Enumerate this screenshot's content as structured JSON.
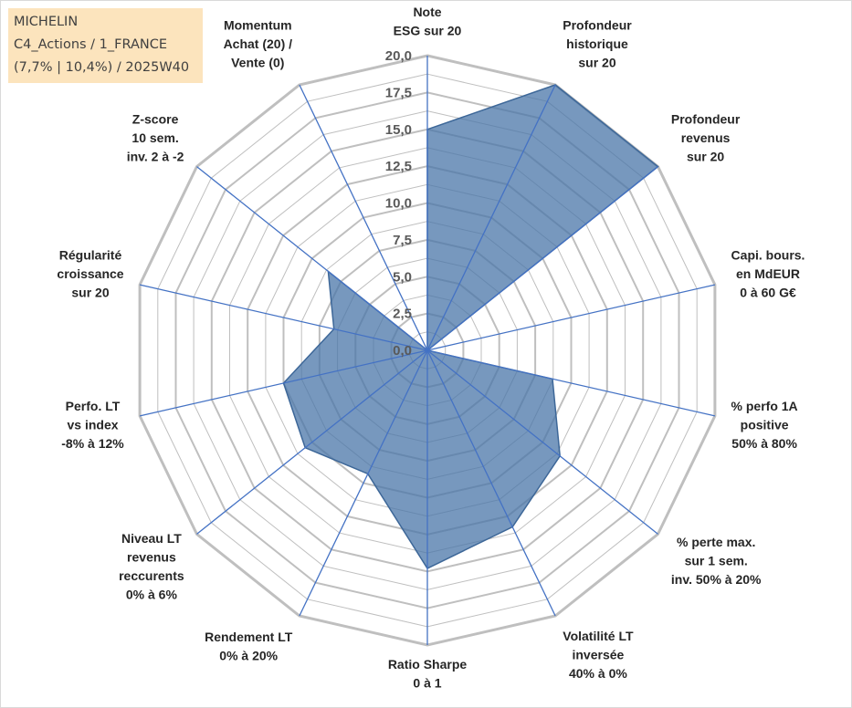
{
  "header": {
    "line1": "MICHELIN",
    "line2": "C4_Actions / 1_FRANCE",
    "line3": "(7,7% | 10,4%) / 2025W40"
  },
  "chart_data": {
    "type": "radar",
    "title": "MICHELIN C4_Actions / 1_FRANCE (7,7% | 10,4%) / 2025W40",
    "rlim": [
      0,
      20
    ],
    "ticks": [
      "0,0",
      "2,5",
      "5,0",
      "7,5",
      "10,0",
      "12,5",
      "15,0",
      "17,5",
      "20,0"
    ],
    "grid": true,
    "categories": [
      [
        "Note",
        "ESG sur 20"
      ],
      [
        "Profondeur",
        "historique",
        "sur 20"
      ],
      [
        "Profondeur",
        "revenus",
        "sur 20"
      ],
      [
        "Capi. bours.",
        "en MdEUR",
        "0 à 60 G€"
      ],
      [
        "% perfo 1A",
        "positive",
        "50% à 80%"
      ],
      [
        "% perte max.",
        "sur 1 sem.",
        "inv. 50% à 20%"
      ],
      [
        "Volatilité LT",
        "inversée",
        "40% à 0%"
      ],
      [
        "Ratio Sharpe",
        "0 à 1"
      ],
      [
        "Rendement LT",
        "0% à 20%"
      ],
      [
        "Niveau LT",
        "revenus",
        "reccurents",
        "0% à 6%"
      ],
      [
        "Perfo. LT",
        "vs index",
        "-8% à 12%"
      ],
      [
        "Régularité",
        "croissance",
        "sur 20"
      ],
      [
        "Z-score",
        "10 sem.",
        "inv. 2 à -2"
      ],
      [
        "Momentum",
        "Achat (20) /",
        "Vente (0)"
      ]
    ],
    "values": [
      15.0,
      20.0,
      20.0,
      0.0,
      8.7,
      11.5,
      13.3,
      14.8,
      9.3,
      10.6,
      10.0,
      6.5,
      8.6,
      0.0
    ],
    "fill_color": "#4a76a8",
    "fill_opacity": 0.75,
    "grid_color": "#bfbfbf",
    "spoke_color": "#4472c4"
  }
}
